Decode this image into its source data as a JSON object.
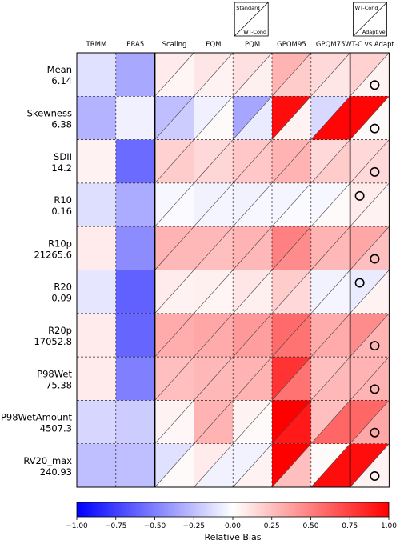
{
  "chart_data": {
    "type": "heatmap",
    "columns": [
      "TRMM",
      "ERA5",
      "Scaling",
      "EQM",
      "PQM",
      "GPQM95",
      "GPQM75",
      "WT-C vs Adapt"
    ],
    "rows": [
      {
        "name": "Mean",
        "value": "6.14"
      },
      {
        "name": "Skewness",
        "value": "6.38"
      },
      {
        "name": "SDII",
        "value": "14.2"
      },
      {
        "name": "R10",
        "value": "0.16"
      },
      {
        "name": "R10p",
        "value": "21265.6"
      },
      {
        "name": "R20",
        "value": "0.09"
      },
      {
        "name": "R20p",
        "value": "17052.8"
      },
      {
        "name": "P98Wet",
        "value": "75.38"
      },
      {
        "name": "P98WetAmount",
        "value": "4507.3"
      },
      {
        "name": "RV20_max",
        "value": "240.93"
      }
    ],
    "single_values": [
      [
        -0.12,
        -0.34
      ],
      [
        -0.3,
        -0.06
      ],
      [
        0.05,
        -0.58
      ],
      [
        -0.13,
        -0.33
      ],
      [
        0.08,
        -0.45
      ],
      [
        -0.1,
        -0.62
      ],
      [
        0.08,
        -0.6
      ],
      [
        0.08,
        -0.5
      ],
      [
        -0.16,
        -0.2
      ],
      [
        -0.25,
        -0.25
      ]
    ],
    "split_values": [
      [
        [
          0.08,
          0.04
        ],
        [
          0.1,
          0.05
        ],
        [
          0.12,
          0.06
        ],
        [
          0.3,
          0.2
        ],
        [
          0.15,
          0.1
        ],
        [
          0.18,
          0.05
        ]
      ],
      [
        [
          -0.25,
          -0.2
        ],
        [
          -0.06,
          0.02
        ],
        [
          -0.35,
          -0.08
        ],
        [
          0.95,
          0.05
        ],
        [
          -0.15,
          0.98
        ],
        [
          0.98,
          0.02
        ]
      ],
      [
        [
          0.18,
          0.2
        ],
        [
          0.15,
          0.16
        ],
        [
          0.22,
          0.22
        ],
        [
          0.3,
          0.3
        ],
        [
          0.15,
          0.2
        ],
        [
          0.15,
          0.15
        ]
      ],
      [
        [
          -0.03,
          -0.02
        ],
        [
          -0.05,
          -0.04
        ],
        [
          -0.05,
          -0.03
        ],
        [
          -0.04,
          -0.02
        ],
        [
          -0.03,
          0.02
        ],
        [
          0.08,
          0.05
        ]
      ],
      [
        [
          0.3,
          0.28
        ],
        [
          0.28,
          0.25
        ],
        [
          0.3,
          0.28
        ],
        [
          0.5,
          0.45
        ],
        [
          0.3,
          0.28
        ],
        [
          0.35,
          0.25
        ]
      ],
      [
        [
          0.08,
          0.05
        ],
        [
          0.06,
          0.04
        ],
        [
          0.1,
          0.06
        ],
        [
          0.2,
          0.15
        ],
        [
          -0.05,
          -0.04
        ],
        [
          -0.08,
          0.05
        ]
      ],
      [
        [
          0.33,
          0.32
        ],
        [
          0.35,
          0.33
        ],
        [
          0.4,
          0.38
        ],
        [
          0.58,
          0.55
        ],
        [
          0.33,
          0.33
        ],
        [
          0.45,
          0.3
        ]
      ],
      [
        [
          0.25,
          0.25
        ],
        [
          0.28,
          0.28
        ],
        [
          0.3,
          0.3
        ],
        [
          0.8,
          0.55
        ],
        [
          0.25,
          0.28
        ],
        [
          0.3,
          0.3
        ]
      ],
      [
        [
          0.05,
          0.03
        ],
        [
          0.3,
          0.3
        ],
        [
          0.05,
          0.02
        ],
        [
          1.0,
          0.9
        ],
        [
          0.25,
          0.6
        ],
        [
          0.6,
          0.35
        ]
      ],
      [
        [
          -0.12,
          0.02
        ],
        [
          0.08,
          -0.05
        ],
        [
          -0.05,
          0.05
        ],
        [
          1.0,
          0.25
        ],
        [
          0.02,
          0.95
        ],
        [
          0.95,
          0.05
        ]
      ]
    ],
    "markers": [
      {
        "row": 0,
        "position": "lower-right"
      },
      {
        "row": 1,
        "position": "lower-right"
      },
      {
        "row": 2,
        "position": "lower-right"
      },
      {
        "row": 3,
        "position": "upper-left"
      },
      {
        "row": 4,
        "position": "lower-right"
      },
      {
        "row": 5,
        "position": "upper-left"
      },
      {
        "row": 6,
        "position": "lower-right"
      },
      {
        "row": 7,
        "position": "lower-right"
      },
      {
        "row": 8,
        "position": "lower-right"
      },
      {
        "row": 9,
        "position": "lower-right"
      }
    ],
    "legend": [
      {
        "upper": "Standard",
        "lower": "WT-Cond"
      },
      {
        "upper": "WT-Cond",
        "lower": "Adaptive"
      }
    ],
    "colorbar": {
      "label": "Relative Bias",
      "min": -1.0,
      "max": 1.0,
      "ticks": [
        "−1.00",
        "−0.75",
        "−0.50",
        "−0.25",
        "0.00",
        "0.25",
        "0.50",
        "0.75",
        "1.00"
      ],
      "cmap": "bwr"
    }
  }
}
